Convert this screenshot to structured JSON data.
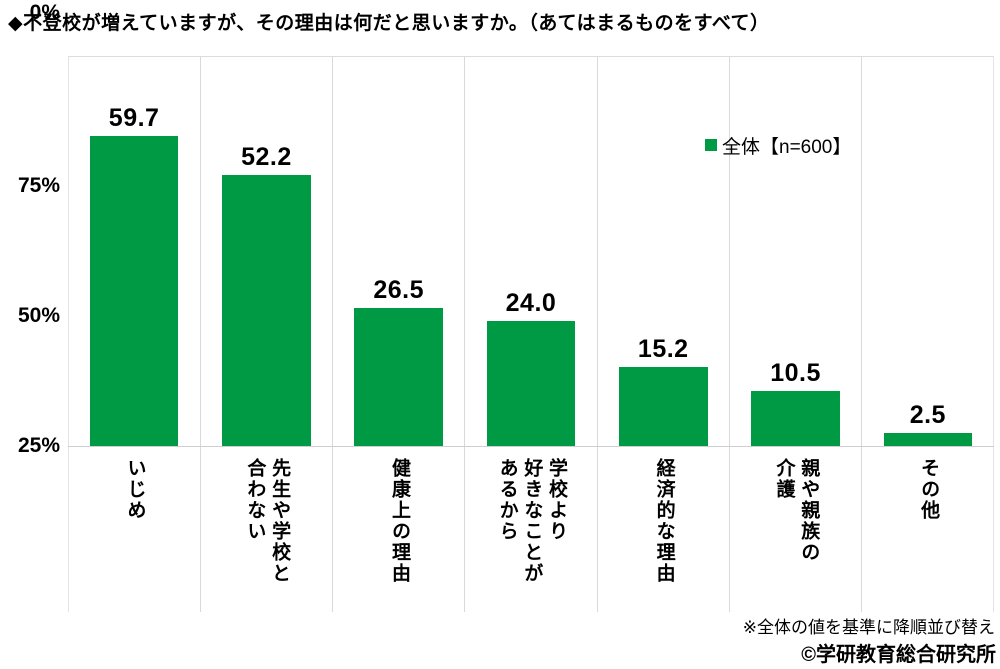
{
  "title": "◆不登校が増えていますが、その理由は何だと思いますか。（あてはまるものをすべて）",
  "legend": {
    "marker_color": "#009944",
    "label": "全体【n=600】"
  },
  "footnote": "※全体の値を基準に降順並び替え",
  "copyright": "©学研教育総合研究所",
  "chart_data": {
    "type": "bar",
    "title": "不登校が増えていますが、その理由は何だと思いますか。（あてはまるものをすべて）",
    "series_name": "全体【n=600】",
    "categories": [
      "いじめ",
      "先生や学校と\n合わない",
      "健康上の理由",
      "学校より\n好きなことが\nあるから",
      "経済的な理由",
      "親や親族の\n介護",
      "その他"
    ],
    "values": [
      59.7,
      52.2,
      26.5,
      24.0,
      15.2,
      10.5,
      2.5
    ],
    "value_labels": [
      "59.7",
      "52.2",
      "26.5",
      "24.0",
      "15.2",
      "10.5",
      "2.5"
    ],
    "xlabel": "",
    "ylabel": "",
    "ylim": [
      0,
      75
    ],
    "yticks": [
      "75%",
      "50%",
      "25%",
      "0%"
    ],
    "bar_color": "#009944",
    "grid": "vertical category separators only, light gray",
    "legend_position": "inside-top-right",
    "sort_note": "全体の値を基準に降順並び替え"
  }
}
